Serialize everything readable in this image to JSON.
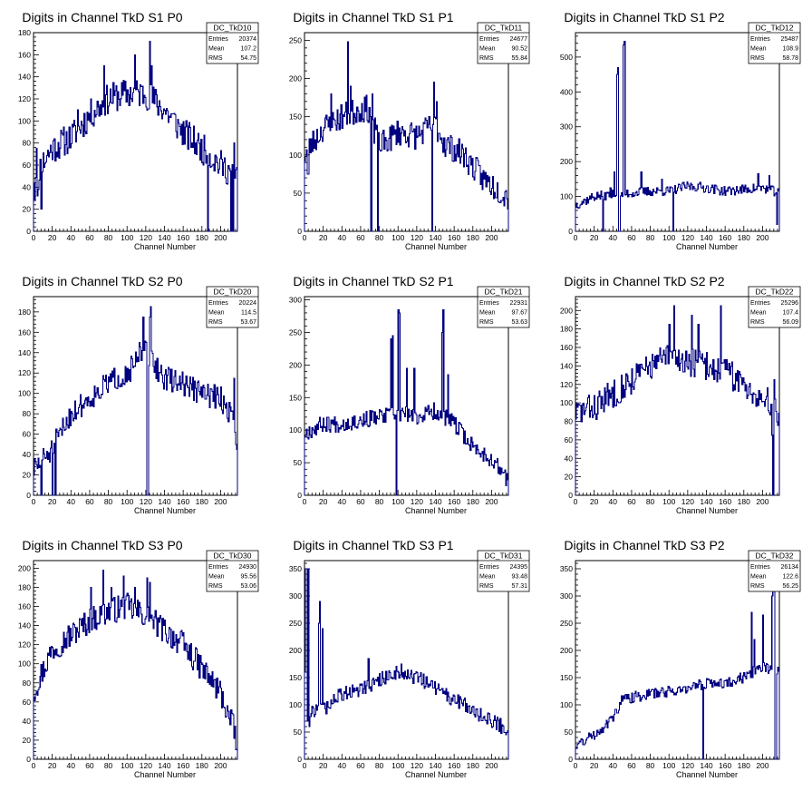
{
  "colors": {
    "line": "#000080",
    "frame": "#000000",
    "background": "#ffffff"
  },
  "chart_data": [
    {
      "type": "histogram",
      "title": "Digits in Channel TkD S1 P0",
      "xlabel": "Channel Number",
      "ylabel": "",
      "xlim": [
        0,
        218
      ],
      "ylim": [
        0,
        180
      ],
      "xticks": [
        0,
        20,
        40,
        60,
        80,
        100,
        120,
        140,
        160,
        180,
        200
      ],
      "yticks": [
        0,
        20,
        40,
        60,
        80,
        100,
        120,
        140,
        160,
        180
      ],
      "stats": {
        "name": "DC_TkD10",
        "entries_label": "Entries",
        "entries": "20374",
        "mean_label": "Mean",
        "mean": "107.2",
        "rms_label": "RMS",
        "rms": "54.75"
      },
      "seed": 11,
      "pivots": [
        [
          0,
          50
        ],
        [
          20,
          75
        ],
        [
          40,
          85
        ],
        [
          60,
          105
        ],
        [
          80,
          120
        ],
        [
          100,
          125
        ],
        [
          120,
          125
        ],
        [
          140,
          110
        ],
        [
          160,
          90
        ],
        [
          180,
          75
        ],
        [
          200,
          60
        ],
        [
          218,
          50
        ]
      ],
      "noise": 14,
      "spikes": [
        [
          1,
          28
        ],
        [
          3,
          75
        ],
        [
          8,
          20
        ],
        [
          47,
          110
        ],
        [
          75,
          150
        ],
        [
          108,
          160
        ],
        [
          124,
          172
        ],
        [
          126,
          150
        ],
        [
          186,
          140
        ],
        [
          214,
          80
        ]
      ],
      "dips": [
        [
          4,
          32
        ],
        [
          5,
          38
        ],
        [
          186,
          0
        ],
        [
          211,
          0
        ],
        [
          213,
          0
        ]
      ]
    },
    {
      "type": "histogram",
      "title": "Digits in Channel TkD S1 P1",
      "xlabel": "Channel Number",
      "ylabel": "",
      "xlim": [
        0,
        218
      ],
      "ylim": [
        0,
        260
      ],
      "xticks": [
        0,
        20,
        40,
        60,
        80,
        100,
        120,
        140,
        160,
        180,
        200
      ],
      "yticks": [
        0,
        50,
        100,
        150,
        200,
        250
      ],
      "stats": {
        "name": "DC_TkD11",
        "entries_label": "Entries",
        "entries": "24677",
        "mean_label": "Mean",
        "mean": "90.52",
        "rms_label": "RMS",
        "rms": "55.84"
      },
      "seed": 23,
      "pivots": [
        [
          0,
          100
        ],
        [
          20,
          135
        ],
        [
          40,
          150
        ],
        [
          60,
          160
        ],
        [
          70,
          160
        ],
        [
          80,
          110
        ],
        [
          100,
          130
        ],
        [
          120,
          125
        ],
        [
          140,
          140
        ],
        [
          150,
          115
        ],
        [
          170,
          100
        ],
        [
          190,
          70
        ],
        [
          218,
          45
        ]
      ],
      "noise": 18,
      "spikes": [
        [
          46,
          248
        ],
        [
          28,
          180
        ],
        [
          49,
          190
        ],
        [
          138,
          195
        ],
        [
          141,
          170
        ]
      ],
      "dips": [
        [
          3,
          75
        ],
        [
          4,
          75
        ],
        [
          71,
          0
        ],
        [
          78,
          0
        ],
        [
          136,
          0
        ],
        [
          72,
          180
        ],
        [
          74,
          115
        ]
      ]
    },
    {
      "type": "histogram",
      "title": "Digits in Channel TkD S1 P2",
      "xlabel": "Channel Number",
      "ylabel": "",
      "xlim": [
        0,
        218
      ],
      "ylim": [
        0,
        570
      ],
      "xticks": [
        0,
        20,
        40,
        60,
        80,
        100,
        120,
        140,
        160,
        180,
        200
      ],
      "yticks": [
        0,
        100,
        200,
        300,
        400,
        500
      ],
      "stats": {
        "name": "DC_TkD12",
        "entries_label": "Entries",
        "entries": "25487",
        "mean_label": "Mean",
        "mean": "108.9",
        "rms_label": "RMS",
        "rms": "58.78"
      },
      "seed": 37,
      "pivots": [
        [
          0,
          75
        ],
        [
          20,
          100
        ],
        [
          40,
          105
        ],
        [
          60,
          110
        ],
        [
          80,
          115
        ],
        [
          100,
          115
        ],
        [
          120,
          130
        ],
        [
          140,
          125
        ],
        [
          160,
          115
        ],
        [
          180,
          120
        ],
        [
          200,
          125
        ],
        [
          218,
          110
        ]
      ],
      "noise": 14,
      "spikes": [
        [
          44,
          450
        ],
        [
          45,
          470
        ],
        [
          51,
          535
        ],
        [
          52,
          545
        ],
        [
          37,
          125
        ],
        [
          41,
          170
        ],
        [
          70,
          170
        ],
        [
          92,
          150
        ],
        [
          195,
          165
        ],
        [
          207,
          160
        ]
      ],
      "dips": [
        [
          29,
          0
        ],
        [
          46,
          0
        ],
        [
          47,
          0
        ],
        [
          104,
          0
        ],
        [
          215,
          20
        ]
      ]
    },
    {
      "type": "histogram",
      "title": "Digits in Channel TkD S2 P0",
      "xlabel": "Channel Number",
      "ylabel": "",
      "xlim": [
        0,
        218
      ],
      "ylim": [
        0,
        195
      ],
      "xticks": [
        0,
        20,
        40,
        60,
        80,
        100,
        120,
        140,
        160,
        180,
        200
      ],
      "yticks": [
        0,
        20,
        40,
        60,
        80,
        100,
        120,
        140,
        160,
        180
      ],
      "stats": {
        "name": "DC_TkD20",
        "entries_label": "Entries",
        "entries": "20224",
        "mean_label": "Mean",
        "mean": "114.5",
        "rms_label": "RMS",
        "rms": "53.67"
      },
      "seed": 51,
      "pivots": [
        [
          0,
          25
        ],
        [
          20,
          45
        ],
        [
          40,
          80
        ],
        [
          60,
          95
        ],
        [
          80,
          110
        ],
        [
          100,
          120
        ],
        [
          120,
          140
        ],
        [
          140,
          115
        ],
        [
          160,
          110
        ],
        [
          180,
          100
        ],
        [
          200,
          95
        ],
        [
          218,
          70
        ]
      ],
      "noise": 12,
      "spikes": [
        [
          117,
          175
        ],
        [
          125,
          185
        ],
        [
          124,
          175
        ],
        [
          113,
          150
        ],
        [
          214,
          115
        ],
        [
          216,
          110
        ]
      ],
      "dips": [
        [
          8,
          0
        ],
        [
          20,
          0
        ],
        [
          23,
          0
        ],
        [
          121,
          0
        ],
        [
          122,
          0
        ],
        [
          216,
          50
        ],
        [
          217,
          45
        ]
      ]
    },
    {
      "type": "histogram",
      "title": "Digits in Channel TkD S2 P1",
      "xlabel": "Channel Number",
      "ylabel": "",
      "xlim": [
        0,
        218
      ],
      "ylim": [
        0,
        305
      ],
      "xticks": [
        0,
        20,
        40,
        60,
        80,
        100,
        120,
        140,
        160,
        180,
        200
      ],
      "yticks": [
        0,
        50,
        100,
        150,
        200,
        250,
        300
      ],
      "stats": {
        "name": "DC_TkD21",
        "entries_label": "Entries",
        "entries": "22931",
        "mean_label": "Mean",
        "mean": "97.67",
        "rms_label": "RMS",
        "rms": "53.63"
      },
      "seed": 67,
      "pivots": [
        [
          0,
          95
        ],
        [
          20,
          110
        ],
        [
          40,
          110
        ],
        [
          60,
          115
        ],
        [
          80,
          120
        ],
        [
          100,
          125
        ],
        [
          120,
          120
        ],
        [
          140,
          130
        ],
        [
          160,
          110
        ],
        [
          180,
          75
        ],
        [
          200,
          55
        ],
        [
          218,
          25
        ]
      ],
      "noise": 13,
      "spikes": [
        [
          92,
          240
        ],
        [
          94,
          245
        ],
        [
          100,
          285
        ],
        [
          101,
          280
        ],
        [
          147,
          250
        ],
        [
          148,
          285
        ],
        [
          153,
          185
        ],
        [
          109,
          195
        ],
        [
          117,
          195
        ]
      ],
      "dips": [
        [
          98,
          0
        ],
        [
          215,
          15
        ]
      ]
    },
    {
      "type": "histogram",
      "title": "Digits in Channel TkD S2 P2",
      "xlabel": "Channel Number",
      "ylabel": "",
      "xlim": [
        0,
        218
      ],
      "ylim": [
        0,
        215
      ],
      "xticks": [
        0,
        20,
        40,
        60,
        80,
        100,
        120,
        140,
        160,
        180,
        200
      ],
      "yticks": [
        0,
        20,
        40,
        60,
        80,
        100,
        120,
        140,
        160,
        180,
        200
      ],
      "stats": {
        "name": "DC_TkD22",
        "entries_label": "Entries",
        "entries": "25296",
        "mean_label": "Mean",
        "mean": "107.4",
        "rms_label": "RMS",
        "rms": "56.09"
      },
      "seed": 83,
      "pivots": [
        [
          0,
          90
        ],
        [
          20,
          95
        ],
        [
          40,
          110
        ],
        [
          60,
          125
        ],
        [
          80,
          140
        ],
        [
          100,
          150
        ],
        [
          120,
          145
        ],
        [
          140,
          140
        ],
        [
          160,
          135
        ],
        [
          180,
          120
        ],
        [
          200,
          105
        ],
        [
          218,
          90
        ]
      ],
      "noise": 16,
      "spikes": [
        [
          105,
          205
        ],
        [
          155,
          205
        ],
        [
          124,
          195
        ],
        [
          100,
          185
        ],
        [
          131,
          185
        ],
        [
          212,
          125
        ]
      ],
      "dips": [
        [
          211,
          0
        ],
        [
          210,
          65
        ]
      ]
    },
    {
      "type": "histogram",
      "title": "Digits in Channel TkD S3 P0",
      "xlabel": "Channel Number",
      "ylabel": "",
      "xlim": [
        0,
        218
      ],
      "ylim": [
        0,
        208
      ],
      "xticks": [
        0,
        20,
        40,
        60,
        80,
        100,
        120,
        140,
        160,
        180,
        200
      ],
      "yticks": [
        0,
        20,
        40,
        60,
        80,
        100,
        120,
        140,
        160,
        180,
        200
      ],
      "stats": {
        "name": "DC_TkD30",
        "entries_label": "Entries",
        "entries": "24930",
        "mean_label": "Mean",
        "mean": "95.56",
        "rms_label": "RMS",
        "rms": "53.06"
      },
      "seed": 97,
      "pivots": [
        [
          0,
          70
        ],
        [
          20,
          115
        ],
        [
          40,
          130
        ],
        [
          60,
          145
        ],
        [
          80,
          155
        ],
        [
          100,
          160
        ],
        [
          120,
          150
        ],
        [
          140,
          135
        ],
        [
          160,
          120
        ],
        [
          180,
          95
        ],
        [
          200,
          70
        ],
        [
          218,
          20
        ]
      ],
      "noise": 14,
      "spikes": [
        [
          74,
          198
        ],
        [
          96,
          192
        ],
        [
          61,
          180
        ],
        [
          83,
          180
        ],
        [
          121,
          190
        ],
        [
          124,
          185
        ],
        [
          108,
          180
        ]
      ],
      "dips": [
        [
          216,
          10
        ]
      ]
    },
    {
      "type": "histogram",
      "title": "Digits in Channel TkD S3 P1",
      "xlabel": "Channel Number",
      "ylabel": "",
      "xlim": [
        0,
        218
      ],
      "ylim": [
        0,
        365
      ],
      "xticks": [
        0,
        20,
        40,
        60,
        80,
        100,
        120,
        140,
        160,
        180,
        200
      ],
      "yticks": [
        0,
        50,
        100,
        150,
        200,
        250,
        300,
        350
      ],
      "stats": {
        "name": "DC_TkD31",
        "entries_label": "Entries",
        "entries": "24395",
        "mean_label": "Mean",
        "mean": "93.48",
        "rms_label": "RMS",
        "rms": "57.31"
      },
      "seed": 109,
      "pivots": [
        [
          0,
          80
        ],
        [
          20,
          90
        ],
        [
          40,
          120
        ],
        [
          60,
          130
        ],
        [
          80,
          145
        ],
        [
          100,
          160
        ],
        [
          120,
          150
        ],
        [
          140,
          130
        ],
        [
          160,
          110
        ],
        [
          180,
          90
        ],
        [
          200,
          70
        ],
        [
          218,
          55
        ]
      ],
      "noise": 14,
      "spikes": [
        [
          1,
          350
        ],
        [
          2,
          350
        ],
        [
          4,
          350
        ],
        [
          15,
          250
        ],
        [
          16,
          290
        ],
        [
          19,
          240
        ],
        [
          68,
          185
        ],
        [
          103,
          175
        ]
      ],
      "dips": [
        [
          0,
          160
        ],
        [
          3,
          70
        ],
        [
          5,
          60
        ],
        [
          12,
          100
        ]
      ]
    },
    {
      "type": "histogram",
      "title": "Digits in Channel TkD S3 P2",
      "xlabel": "Channel Number",
      "ylabel": "",
      "xlim": [
        0,
        218
      ],
      "ylim": [
        0,
        365
      ],
      "xticks": [
        0,
        20,
        40,
        60,
        80,
        100,
        120,
        140,
        160,
        180,
        200
      ],
      "yticks": [
        0,
        50,
        100,
        150,
        200,
        250,
        300,
        350
      ],
      "stats": {
        "name": "DC_TkD32",
        "entries_label": "Entries",
        "entries": "26134",
        "mean_label": "Mean",
        "mean": "122.6",
        "rms_label": "RMS",
        "rms": "56.25"
      },
      "seed": 131,
      "pivots": [
        [
          0,
          25
        ],
        [
          20,
          45
        ],
        [
          40,
          75
        ],
        [
          50,
          110
        ],
        [
          80,
          120
        ],
        [
          100,
          125
        ],
        [
          120,
          130
        ],
        [
          140,
          140
        ],
        [
          160,
          140
        ],
        [
          180,
          150
        ],
        [
          200,
          170
        ],
        [
          218,
          160
        ]
      ],
      "noise": 10,
      "spikes": [
        [
          188,
          270
        ],
        [
          200,
          265
        ],
        [
          191,
          220
        ],
        [
          210,
          300
        ],
        [
          211,
          350
        ],
        [
          212,
          350
        ]
      ],
      "dips": [
        [
          136,
          0
        ],
        [
          213,
          0
        ],
        [
          214,
          0
        ]
      ]
    }
  ]
}
